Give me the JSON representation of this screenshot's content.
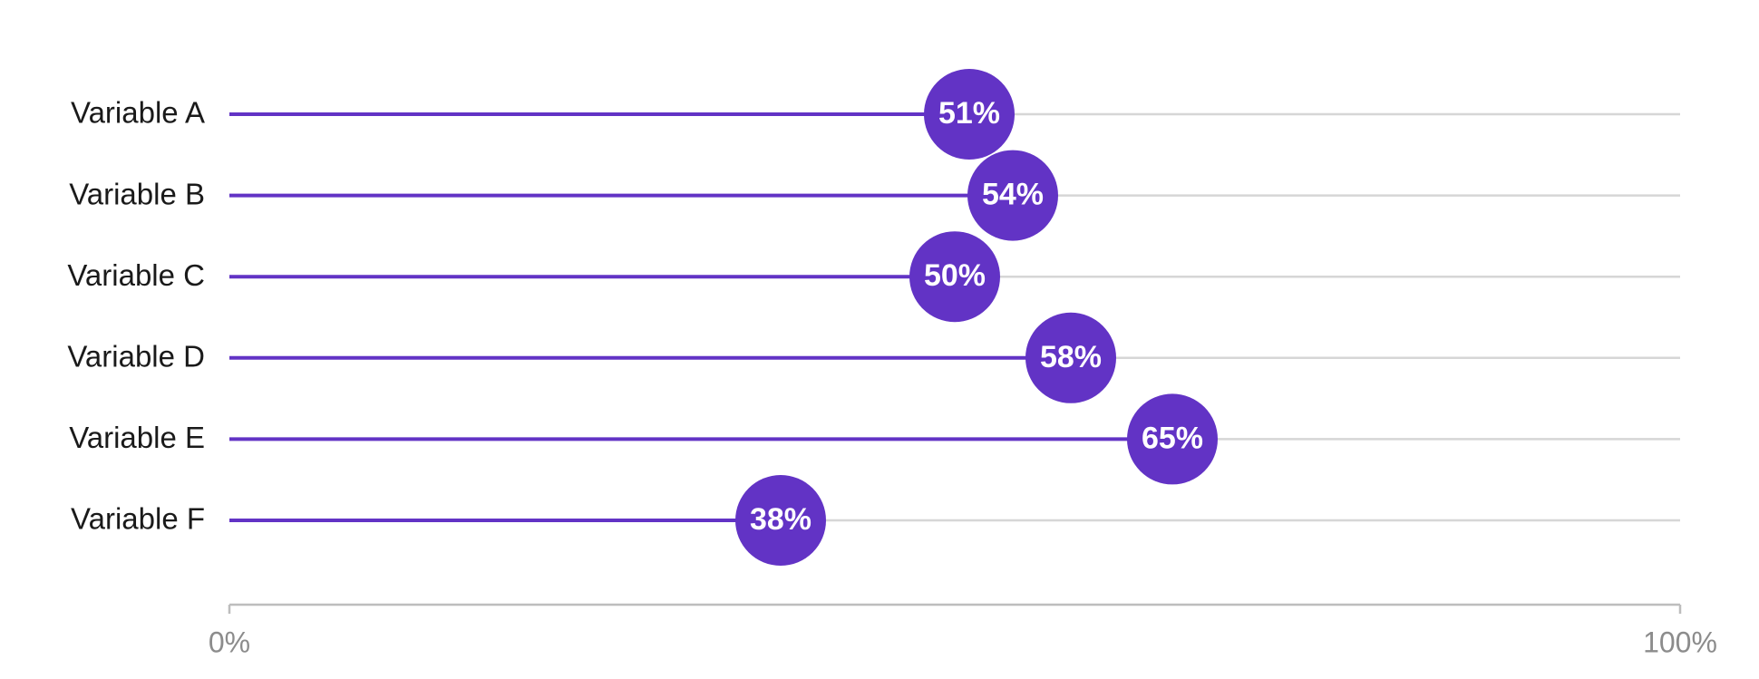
{
  "chart_data": {
    "type": "lollipop",
    "categories": [
      "Variable A",
      "Variable B",
      "Variable C",
      "Variable D",
      "Variable E",
      "Variable F"
    ],
    "values": [
      51,
      54,
      50,
      58,
      65,
      38
    ],
    "value_labels": [
      "51%",
      "54%",
      "50%",
      "58%",
      "65%",
      "38%"
    ],
    "xlim": [
      0,
      100
    ],
    "x_tick_labels": [
      "0%",
      "100%"
    ],
    "grid": true,
    "colors": {
      "accent": "#6233C5",
      "label_text": "#1a1a1a",
      "tick_text": "#8c8c8c",
      "gridline": "#d6d6d6",
      "axis": "#bdbdbd",
      "value_text": "#ffffff"
    }
  }
}
